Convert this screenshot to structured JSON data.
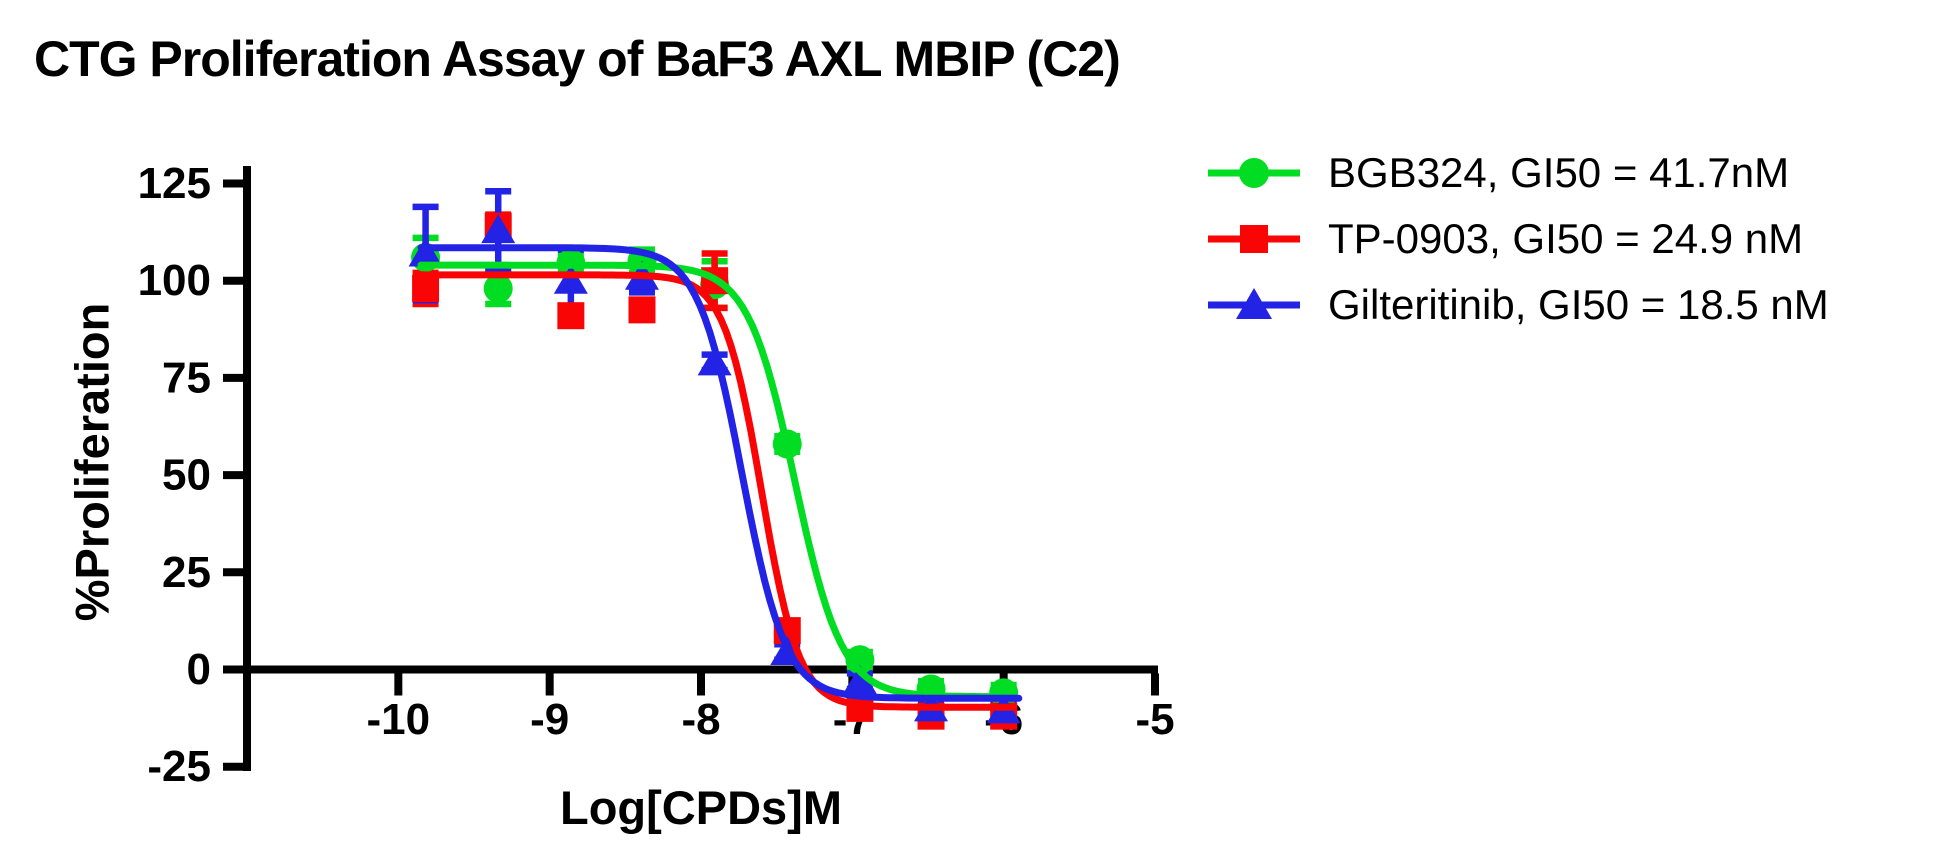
{
  "title": "CTG Proliferation Assay of BaF3 AXL MBIP (C2)",
  "background_color": "#FFFFFF",
  "text_color": "#000000",
  "chart_data": {
    "type": "scatter",
    "subtype": "dose-response curves with logistic fits and error bars",
    "title": "CTG Proliferation Assay of BaF3 AXL MBIP (C2)",
    "xlabel": "Log[CPDs]M",
    "ylabel": "%Proliferation",
    "x_ticks": [
      -10,
      -9,
      -8,
      -7,
      -6,
      -5
    ],
    "y_ticks": [
      125,
      100,
      75,
      50,
      25,
      0,
      -25
    ],
    "x_range": [
      -11,
      -5
    ],
    "y_range": [
      -25,
      125
    ],
    "grid": "off",
    "legend_position": "top-right",
    "x": [
      -9.82,
      -9.34,
      -8.86,
      -8.39,
      -7.91,
      -7.43,
      -6.95,
      -6.48,
      -6.0
    ],
    "series": [
      {
        "name": "BGB324",
        "label": "BGB324, GI50 = 41.7nM",
        "gi50_nM": 41.7,
        "color": "#00DD22",
        "marker": "circle",
        "values": [
          106,
          98,
          104.5,
          105,
          99,
          58,
          2.5,
          -5,
          -6
        ],
        "errors": [
          5,
          4,
          2,
          3,
          6,
          2,
          2,
          2,
          2
        ],
        "fit": {
          "top": 104,
          "bottom": -7,
          "log_gi50": -7.38,
          "hill_slope": 2.8,
          "x_start": -9.85,
          "x_end": -5.93
        }
      },
      {
        "name": "TP-0903",
        "label": "TP-0903, GI50 = 24.9 nM",
        "gi50_nM": 24.9,
        "color": "#FA0505",
        "marker": "square",
        "values": [
          98,
          114,
          91,
          92.5,
          100,
          10,
          -10,
          -12,
          -12
        ],
        "errors": [
          4,
          3,
          2,
          2,
          7,
          2,
          2,
          2,
          2
        ],
        "fit": {
          "top": 101.5,
          "bottom": -9.7,
          "log_gi50": -7.6,
          "hill_slope": 3.5,
          "x_start": -9.85,
          "x_end": -5.95
        }
      },
      {
        "name": "Gilteritinib",
        "label": "Gilteritinib, GI50 = 18.5 nM",
        "gi50_nM": 18.5,
        "color": "#2323E6",
        "marker": "triangle",
        "values": [
          107,
          113,
          100,
          101,
          79,
          4.5,
          -3,
          -10,
          -10.5
        ],
        "errors": [
          12,
          10,
          8,
          4,
          2,
          2,
          2,
          2,
          2
        ],
        "fit": {
          "top": 108.5,
          "bottom": -7.4,
          "log_gi50": -7.73,
          "hill_slope": 3.0,
          "x_start": -9.85,
          "x_end": -5.9
        }
      }
    ]
  }
}
